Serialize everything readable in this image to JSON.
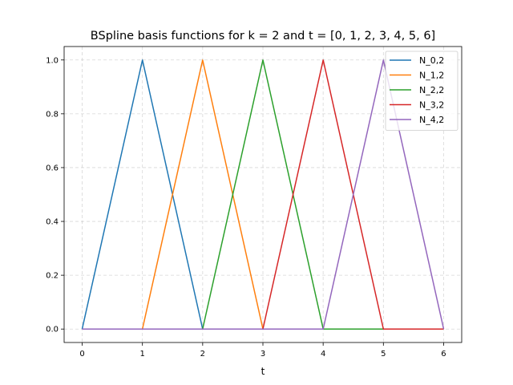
{
  "chart_data": {
    "type": "line",
    "title": "BSpline basis functions for k =  2 and t = [0, 1, 2, 3, 4, 5, 6]",
    "xlabel": "t",
    "ylabel": "",
    "xlim": [
      -0.3,
      6.3
    ],
    "ylim": [
      -0.05,
      1.05
    ],
    "xticks": [
      0,
      1,
      2,
      3,
      4,
      5,
      6
    ],
    "xtick_labels": [
      "0",
      "1",
      "2",
      "3",
      "4",
      "5",
      "6"
    ],
    "yticks": [
      0.0,
      0.2,
      0.4,
      0.6,
      0.8,
      1.0
    ],
    "ytick_labels": [
      "0.0",
      "0.2",
      "0.4",
      "0.6",
      "0.8",
      "1.0"
    ],
    "grid": true,
    "legend_position": "top-right",
    "series": [
      {
        "name": "N_0,2",
        "color": "#1f77b4",
        "x": [
          0,
          1,
          2,
          3,
          4,
          5,
          6
        ],
        "y": [
          0,
          1,
          0,
          0,
          0,
          0,
          0
        ]
      },
      {
        "name": "N_1,2",
        "color": "#ff7f0e",
        "x": [
          0,
          1,
          2,
          3,
          4,
          5,
          6
        ],
        "y": [
          0,
          0,
          1,
          0,
          0,
          0,
          0
        ]
      },
      {
        "name": "N_2,2",
        "color": "#2ca02c",
        "x": [
          0,
          1,
          2,
          3,
          4,
          5,
          6
        ],
        "y": [
          0,
          0,
          0,
          1,
          0,
          0,
          0
        ]
      },
      {
        "name": "N_3,2",
        "color": "#d62728",
        "x": [
          0,
          1,
          2,
          3,
          4,
          5,
          6
        ],
        "y": [
          0,
          0,
          0,
          0,
          1,
          0,
          0
        ]
      },
      {
        "name": "N_4,2",
        "color": "#9467bd",
        "x": [
          0,
          1,
          2,
          3,
          4,
          5,
          6
        ],
        "y": [
          0,
          0,
          0,
          0,
          0,
          1,
          0
        ]
      }
    ]
  }
}
